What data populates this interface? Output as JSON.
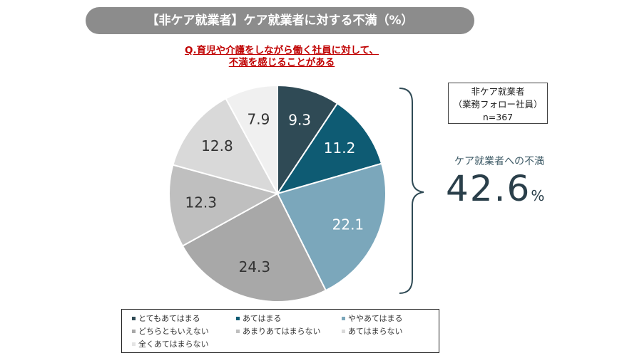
{
  "header": {
    "title": "【非ケア就業者】ケア就業者に対する不満（%）"
  },
  "question": {
    "line1": "Q.育児や介護をしながら働く社員に対して、",
    "line2": "不満を感じることがある"
  },
  "info_box": {
    "line1": "非ケア就業者",
    "line2": "（業務フォロー社員）",
    "line3": "n=367"
  },
  "dissatisfaction": {
    "label": "ケア就業者への不満",
    "value": "42.6",
    "unit": "%"
  },
  "chart_data": {
    "type": "pie",
    "title": "【非ケア就業者】ケア就業者に対する不満（%）",
    "categories": [
      "とてもあてはまる",
      "あてはまる",
      "ややあてはまる",
      "どちらともいえない",
      "あまりあてはまらない",
      "あてはまらない",
      "全くあてはまらない"
    ],
    "values": [
      9.3,
      11.2,
      22.1,
      24.3,
      12.3,
      12.8,
      7.9
    ],
    "labels": [
      "9.3",
      "11.2",
      "22.1",
      "24.3",
      "12.3",
      "12.8",
      "7.9"
    ],
    "colors": [
      "#2f4a55",
      "#0e5b73",
      "#7ba7bb",
      "#a8a8a8",
      "#bfbfbf",
      "#d9d9d9",
      "#f0f0f0"
    ],
    "label_colors": [
      "#ffffff",
      "#ffffff",
      "#ffffff",
      "#333333",
      "#333333",
      "#333333",
      "#333333"
    ],
    "legend_position": "bottom"
  }
}
